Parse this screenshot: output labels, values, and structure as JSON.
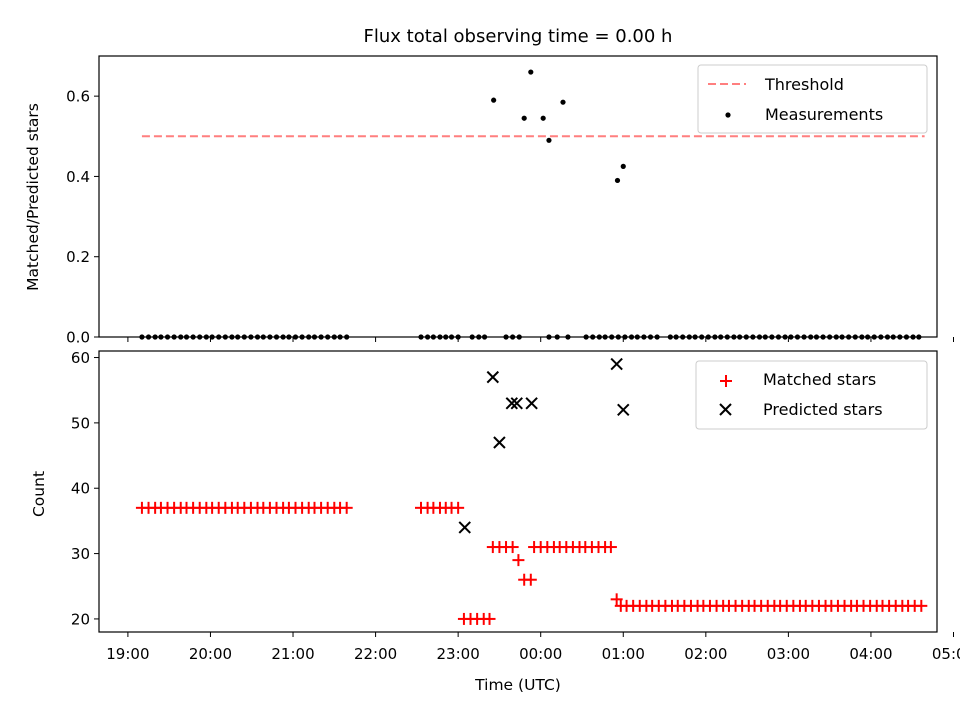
{
  "chart_data": [
    {
      "type": "scatter",
      "title": "Flux total observing time = 0.00 h",
      "xlabel": "",
      "ylabel": "Matched/Predicted stars",
      "xlim": [
        -0.35,
        9.8
      ],
      "ylim": [
        0,
        0.7
      ],
      "yticks": [
        0.0,
        0.2,
        0.4,
        0.6
      ],
      "ytick_labels": [
        "0.0",
        "0.2",
        "0.4",
        "0.6"
      ],
      "legend": {
        "placement": "top-right",
        "entries": [
          "Threshold",
          "Measurements"
        ]
      },
      "threshold": {
        "name": "Threshold",
        "y": 0.5,
        "x": [
          0.17,
          9.65
        ],
        "color": "#ff7f7f",
        "style": "dashed"
      },
      "series": [
        {
          "name": "Measurements",
          "color": "#000000",
          "marker": "dot",
          "points": [
            [
              4.43,
              0.59
            ],
            [
              4.8,
              0.545
            ],
            [
              4.88,
              0.66
            ],
            [
              5.03,
              0.545
            ],
            [
              5.1,
              0.49
            ],
            [
              5.27,
              0.585
            ],
            [
              5.93,
              0.39
            ],
            [
              6.0,
              0.425
            ],
            [
              0.17,
              0
            ],
            [
              0.25,
              0
            ],
            [
              0.33,
              0
            ],
            [
              0.4,
              0
            ],
            [
              0.48,
              0
            ],
            [
              0.56,
              0
            ],
            [
              0.64,
              0
            ],
            [
              0.71,
              0
            ],
            [
              0.79,
              0
            ],
            [
              0.87,
              0
            ],
            [
              0.95,
              0
            ],
            [
              1.02,
              0
            ],
            [
              1.1,
              0
            ],
            [
              1.18,
              0
            ],
            [
              1.26,
              0
            ],
            [
              1.33,
              0
            ],
            [
              1.41,
              0
            ],
            [
              1.49,
              0
            ],
            [
              1.57,
              0
            ],
            [
              1.64,
              0
            ],
            [
              1.72,
              0
            ],
            [
              1.8,
              0
            ],
            [
              1.88,
              0
            ],
            [
              1.95,
              0
            ],
            [
              2.03,
              0
            ],
            [
              2.11,
              0
            ],
            [
              2.19,
              0
            ],
            [
              2.26,
              0
            ],
            [
              2.34,
              0
            ],
            [
              2.42,
              0
            ],
            [
              2.5,
              0
            ],
            [
              2.57,
              0
            ],
            [
              2.65,
              0
            ],
            [
              3.55,
              0
            ],
            [
              3.63,
              0
            ],
            [
              3.7,
              0
            ],
            [
              3.78,
              0
            ],
            [
              3.85,
              0
            ],
            [
              3.92,
              0
            ],
            [
              4.0,
              0
            ],
            [
              4.17,
              0
            ],
            [
              4.25,
              0
            ],
            [
              4.32,
              0
            ],
            [
              4.58,
              0
            ],
            [
              4.66,
              0
            ],
            [
              4.74,
              0
            ],
            [
              5.1,
              0
            ],
            [
              5.2,
              0
            ],
            [
              5.33,
              0
            ],
            [
              5.55,
              0
            ],
            [
              5.63,
              0
            ],
            [
              5.71,
              0
            ],
            [
              5.78,
              0
            ],
            [
              5.86,
              0
            ],
            [
              5.94,
              0
            ],
            [
              6.02,
              0
            ],
            [
              6.1,
              0
            ],
            [
              6.17,
              0
            ],
            [
              6.25,
              0
            ],
            [
              6.33,
              0
            ],
            [
              6.41,
              0
            ],
            [
              6.57,
              0
            ],
            [
              6.64,
              0
            ],
            [
              6.72,
              0
            ],
            [
              6.8,
              0
            ],
            [
              6.87,
              0
            ],
            [
              6.95,
              0
            ],
            [
              7.03,
              0
            ],
            [
              7.11,
              0
            ],
            [
              7.18,
              0
            ],
            [
              7.26,
              0
            ],
            [
              7.34,
              0
            ],
            [
              7.41,
              0
            ],
            [
              7.49,
              0
            ],
            [
              7.57,
              0
            ],
            [
              7.65,
              0
            ],
            [
              7.72,
              0
            ],
            [
              7.8,
              0
            ],
            [
              7.88,
              0
            ],
            [
              7.96,
              0
            ],
            [
              8.03,
              0
            ],
            [
              8.11,
              0
            ],
            [
              8.19,
              0
            ],
            [
              8.27,
              0
            ],
            [
              8.34,
              0
            ],
            [
              8.42,
              0
            ],
            [
              8.5,
              0
            ],
            [
              8.58,
              0
            ],
            [
              8.65,
              0
            ],
            [
              8.73,
              0
            ],
            [
              8.81,
              0
            ],
            [
              8.89,
              0
            ],
            [
              8.96,
              0
            ],
            [
              9.04,
              0
            ],
            [
              9.12,
              0
            ],
            [
              9.2,
              0
            ],
            [
              9.27,
              0
            ],
            [
              9.35,
              0
            ],
            [
              9.43,
              0
            ],
            [
              9.51,
              0
            ],
            [
              9.58,
              0
            ]
          ]
        }
      ]
    },
    {
      "type": "scatter",
      "title": "",
      "xlabel": "Time (UTC)",
      "ylabel": "Count",
      "xlim": [
        -0.35,
        9.8
      ],
      "ylim": [
        18,
        61
      ],
      "yticks": [
        20,
        30,
        40,
        50,
        60
      ],
      "ytick_labels": [
        "20",
        "30",
        "40",
        "50",
        "60"
      ],
      "xticks": [
        0,
        1,
        2,
        3,
        4,
        5,
        6,
        7,
        8,
        9,
        10
      ],
      "xtick_labels": [
        "19:00",
        "20:00",
        "21:00",
        "22:00",
        "23:00",
        "00:00",
        "01:00",
        "02:00",
        "03:00",
        "04:00",
        "05:00"
      ],
      "legend": {
        "placement": "top-right",
        "entries": [
          "Matched stars",
          "Predicted stars"
        ]
      },
      "series": [
        {
          "name": "Matched stars",
          "color": "#ff0000",
          "marker": "plus",
          "points": [
            [
              0.17,
              37
            ],
            [
              0.25,
              37
            ],
            [
              0.33,
              37
            ],
            [
              0.4,
              37
            ],
            [
              0.48,
              37
            ],
            [
              0.56,
              37
            ],
            [
              0.64,
              37
            ],
            [
              0.71,
              37
            ],
            [
              0.79,
              37
            ],
            [
              0.87,
              37
            ],
            [
              0.95,
              37
            ],
            [
              1.02,
              37
            ],
            [
              1.1,
              37
            ],
            [
              1.18,
              37
            ],
            [
              1.26,
              37
            ],
            [
              1.33,
              37
            ],
            [
              1.41,
              37
            ],
            [
              1.49,
              37
            ],
            [
              1.57,
              37
            ],
            [
              1.64,
              37
            ],
            [
              1.72,
              37
            ],
            [
              1.8,
              37
            ],
            [
              1.88,
              37
            ],
            [
              1.95,
              37
            ],
            [
              2.03,
              37
            ],
            [
              2.11,
              37
            ],
            [
              2.19,
              37
            ],
            [
              2.26,
              37
            ],
            [
              2.34,
              37
            ],
            [
              2.42,
              37
            ],
            [
              2.5,
              37
            ],
            [
              2.57,
              37
            ],
            [
              2.65,
              37
            ],
            [
              3.55,
              37
            ],
            [
              3.63,
              37
            ],
            [
              3.7,
              37
            ],
            [
              3.78,
              37
            ],
            [
              3.85,
              37
            ],
            [
              3.92,
              37
            ],
            [
              4.0,
              37
            ],
            [
              4.07,
              20
            ],
            [
              4.15,
              20
            ],
            [
              4.23,
              20
            ],
            [
              4.31,
              20
            ],
            [
              4.38,
              20
            ],
            [
              4.42,
              31
            ],
            [
              4.5,
              31
            ],
            [
              4.58,
              31
            ],
            [
              4.66,
              31
            ],
            [
              4.73,
              29
            ],
            [
              4.8,
              26
            ],
            [
              4.88,
              26
            ],
            [
              4.92,
              31
            ],
            [
              5.0,
              31
            ],
            [
              5.08,
              31
            ],
            [
              5.16,
              31
            ],
            [
              5.23,
              31
            ],
            [
              5.31,
              31
            ],
            [
              5.39,
              31
            ],
            [
              5.47,
              31
            ],
            [
              5.54,
              31
            ],
            [
              5.62,
              31
            ],
            [
              5.7,
              31
            ],
            [
              5.78,
              31
            ],
            [
              5.85,
              31
            ],
            [
              5.92,
              23
            ],
            [
              5.97,
              22
            ],
            [
              6.04,
              22
            ],
            [
              6.12,
              22
            ],
            [
              6.2,
              22
            ],
            [
              6.28,
              22
            ],
            [
              6.35,
              22
            ],
            [
              6.43,
              22
            ],
            [
              6.51,
              22
            ],
            [
              6.59,
              22
            ],
            [
              6.66,
              22
            ],
            [
              6.74,
              22
            ],
            [
              6.82,
              22
            ],
            [
              6.9,
              22
            ],
            [
              6.97,
              22
            ],
            [
              7.05,
              22
            ],
            [
              7.13,
              22
            ],
            [
              7.21,
              22
            ],
            [
              7.28,
              22
            ],
            [
              7.36,
              22
            ],
            [
              7.44,
              22
            ],
            [
              7.52,
              22
            ],
            [
              7.59,
              22
            ],
            [
              7.67,
              22
            ],
            [
              7.75,
              22
            ],
            [
              7.83,
              22
            ],
            [
              7.9,
              22
            ],
            [
              7.98,
              22
            ],
            [
              8.06,
              22
            ],
            [
              8.14,
              22
            ],
            [
              8.21,
              22
            ],
            [
              8.29,
              22
            ],
            [
              8.37,
              22
            ],
            [
              8.45,
              22
            ],
            [
              8.52,
              22
            ],
            [
              8.6,
              22
            ],
            [
              8.68,
              22
            ],
            [
              8.76,
              22
            ],
            [
              8.83,
              22
            ],
            [
              8.91,
              22
            ],
            [
              8.99,
              22
            ],
            [
              9.07,
              22
            ],
            [
              9.14,
              22
            ],
            [
              9.22,
              22
            ],
            [
              9.3,
              22
            ],
            [
              9.38,
              22
            ],
            [
              9.45,
              22
            ],
            [
              9.53,
              22
            ],
            [
              9.61,
              22
            ]
          ]
        },
        {
          "name": "Predicted stars",
          "color": "#000000",
          "marker": "x",
          "points": [
            [
              4.08,
              34
            ],
            [
              4.42,
              57
            ],
            [
              4.5,
              47
            ],
            [
              4.65,
              53
            ],
            [
              4.71,
              53
            ],
            [
              4.89,
              53
            ],
            [
              5.92,
              59
            ],
            [
              6.0,
              52
            ]
          ]
        }
      ]
    }
  ]
}
